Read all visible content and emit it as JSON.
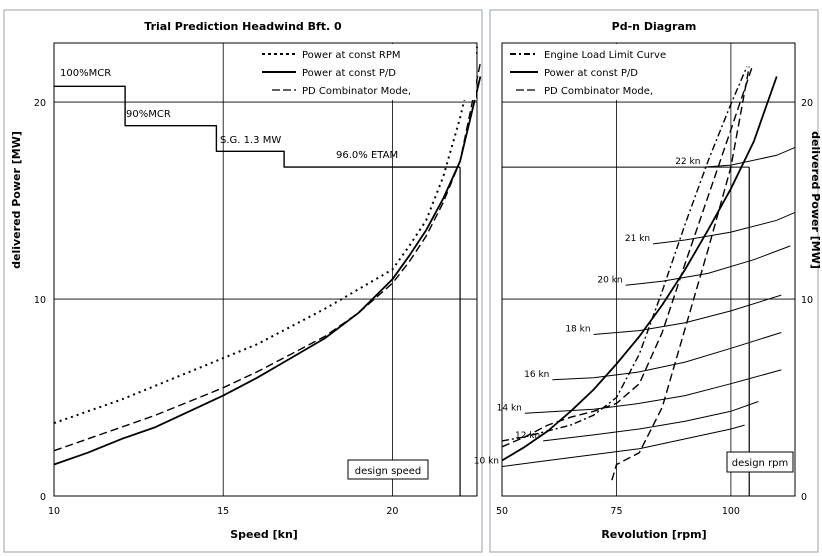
{
  "chart_data": [
    {
      "type": "line",
      "title": "Trial Prediction Headwind Bft. 0",
      "xlabel": "Speed [kn]",
      "ylabel": "delivered Power [MW]",
      "xlim": [
        10,
        22.5
      ],
      "ylim": [
        0,
        23
      ],
      "xticks": [
        "10",
        "15",
        "20"
      ],
      "yticks": [
        "0",
        "10",
        "20"
      ],
      "grid": "major",
      "legend": "top-right",
      "series": [
        {
          "name": "Power at const RPM",
          "style": "dotted",
          "x": [
            10,
            11,
            12,
            13,
            14,
            15,
            16,
            17,
            18,
            19,
            20,
            20.5,
            21,
            21.5,
            22,
            22.5
          ],
          "y": [
            3.7,
            4.3,
            4.9,
            5.6,
            6.3,
            7.0,
            7.7,
            8.6,
            9.5,
            10.5,
            11.5,
            12.7,
            14.0,
            16.2,
            19.2,
            22.8
          ]
        },
        {
          "name": "Power at const P/D",
          "style": "solid",
          "x": [
            10,
            11,
            12,
            13,
            14,
            15,
            16,
            17,
            18,
            19,
            20,
            20.5,
            21,
            21.5,
            22,
            22.6
          ],
          "y": [
            1.6,
            2.2,
            2.9,
            3.5,
            4.3,
            5.1,
            6.0,
            7.0,
            8.0,
            9.3,
            11.0,
            12.2,
            13.5,
            15.1,
            17.0,
            21.3
          ]
        },
        {
          "name": "PD Combinator Mode,",
          "style": "dashed",
          "x": [
            10,
            11,
            12,
            13,
            14,
            15,
            16,
            17,
            18,
            19,
            20,
            20.5,
            21,
            21.5,
            22,
            22.6
          ],
          "y": [
            2.3,
            2.9,
            3.5,
            4.1,
            4.8,
            5.5,
            6.3,
            7.2,
            8.1,
            9.3,
            10.8,
            11.9,
            13.2,
            14.9,
            17.0,
            22.0
          ]
        },
        {
          "name": "MCR limits",
          "style": "solid",
          "x": [
            10,
            12.1,
            12.1,
            14.8,
            14.8,
            16.8,
            16.8,
            22
          ],
          "y": [
            20.8,
            20.8,
            18.8,
            18.8,
            17.5,
            17.5,
            16.7,
            16.7
          ]
        }
      ],
      "annotations": [
        "100%MCR",
        "90%MCR",
        "S.G. 1.3 MW",
        "96.0% ETAM",
        "design speed"
      ],
      "design_speed": 22
    },
    {
      "type": "line",
      "title": "Pd-n Diagram",
      "xlabel": "Revolution [rpm]",
      "ylabel": "delivered Power [MW]",
      "xlim": [
        50,
        114
      ],
      "ylim": [
        0,
        23
      ],
      "xticks": [
        "50",
        "75",
        "100"
      ],
      "yticks": [
        "0",
        "10",
        "20"
      ],
      "grid": "major",
      "legend": "top-left",
      "series": [
        {
          "name": "Engine Load Limit Curve",
          "style": "dash-dot",
          "x": [
            50,
            55,
            60,
            65,
            70,
            75,
            80,
            85,
            90,
            95,
            100,
            103.5
          ],
          "y": [
            2.8,
            3.0,
            3.3,
            3.6,
            4.1,
            5.0,
            7.2,
            10.4,
            13.8,
            17.0,
            19.9,
            21.8
          ]
        },
        {
          "name": "Power at const P/D",
          "style": "solid",
          "x": [
            50,
            55,
            60,
            65,
            70,
            75,
            80,
            85,
            90,
            95,
            100,
            105,
            110
          ],
          "y": [
            1.8,
            2.5,
            3.3,
            4.3,
            5.4,
            6.7,
            8.1,
            9.7,
            11.5,
            13.5,
            15.6,
            18.0,
            21.3
          ]
        },
        {
          "name": "PD Combinator Mode,",
          "style": "dashed",
          "x": [
            50,
            55,
            60,
            65,
            70,
            75,
            80,
            85,
            90,
            95,
            100,
            104.8
          ],
          "y": [
            2.5,
            3.0,
            3.6,
            4.0,
            4.3,
            4.7,
            5.7,
            8.3,
            11.8,
            15.2,
            18.6,
            21.9
          ]
        },
        {
          "name": "",
          "style": "dashed",
          "x": [
            74,
            75,
            80,
            85,
            90,
            95,
            100,
            104
          ],
          "y": [
            0.8,
            1.6,
            2.2,
            4.5,
            8.5,
            12.5,
            16.7,
            21.8
          ]
        }
      ],
      "speed_curves": [
        {
          "label": "10 kn",
          "x": [
            50,
            60,
            70,
            80,
            90,
            100,
            103
          ],
          "y": [
            1.5,
            1.8,
            2.1,
            2.4,
            2.9,
            3.4,
            3.6
          ]
        },
        {
          "label": "12 kn",
          "x": [
            59,
            70,
            80,
            90,
            100,
            106
          ],
          "y": [
            2.8,
            3.1,
            3.4,
            3.8,
            4.3,
            4.8
          ]
        },
        {
          "label": "14 kn",
          "x": [
            55,
            70,
            80,
            90,
            100,
            111
          ],
          "y": [
            4.2,
            4.4,
            4.7,
            5.1,
            5.7,
            6.4
          ]
        },
        {
          "label": "16 kn",
          "x": [
            61,
            70,
            80,
            90,
            100,
            111
          ],
          "y": [
            5.9,
            6.0,
            6.3,
            6.8,
            7.5,
            8.3
          ]
        },
        {
          "label": "18 kn",
          "x": [
            70,
            80,
            90,
            100,
            111
          ],
          "y": [
            8.2,
            8.4,
            8.8,
            9.4,
            10.2
          ]
        },
        {
          "label": "20 kn",
          "x": [
            77,
            85,
            95,
            105,
            113
          ],
          "y": [
            10.7,
            10.9,
            11.3,
            12.0,
            12.7
          ]
        },
        {
          "label": "21 kn",
          "x": [
            83,
            90,
            100,
            110,
            114
          ],
          "y": [
            12.8,
            13.0,
            13.4,
            14.0,
            14.4
          ]
        },
        {
          "label": "22 kn",
          "x": [
            94,
            100,
            110,
            114
          ],
          "y": [
            16.7,
            16.8,
            17.3,
            17.7
          ]
        }
      ],
      "annotations": [
        "design rpm"
      ],
      "design_rpm": 104,
      "design_power": 16.7
    }
  ]
}
